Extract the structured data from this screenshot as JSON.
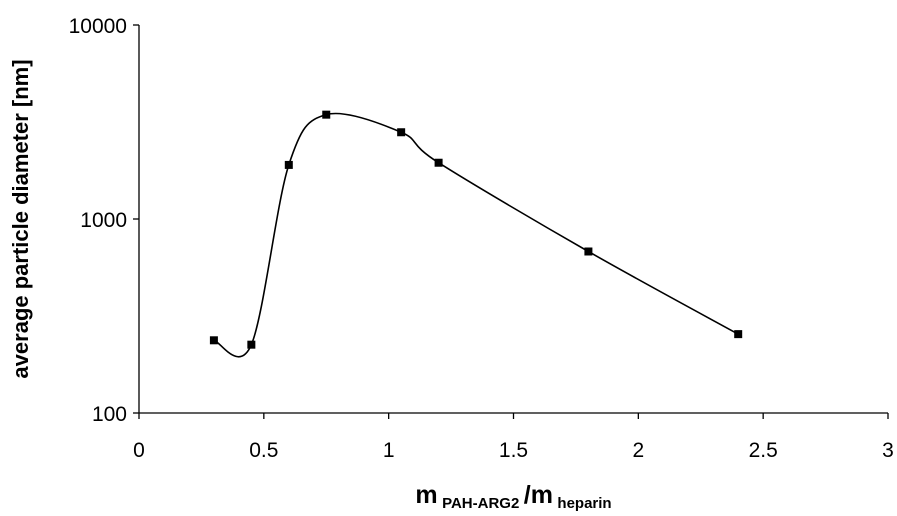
{
  "chart_data": {
    "type": "scatter",
    "title": "",
    "xlabel": {
      "main": "m",
      "sub": "PAH-ARG2",
      "separator": "/m",
      "sub2": "heparin"
    },
    "ylabel": "average particle diameter [nm]",
    "xlim": [
      0,
      3
    ],
    "ylim": [
      100,
      10000
    ],
    "yscale": "log",
    "xticks": [
      "0",
      "0.5",
      "1",
      "1.5",
      "2",
      "2.5",
      "3"
    ],
    "yticks": [
      "100",
      "1000",
      "10000"
    ],
    "grid": false,
    "legend": false,
    "series": [
      {
        "marker": "square",
        "line": "smoothed",
        "color": "#000000",
        "x": [
          0.3,
          0.45,
          0.6,
          0.75,
          1.05,
          1.2,
          1.8,
          2.4
        ],
        "y": [
          237,
          225,
          1900,
          3450,
          2800,
          1950,
          680,
          255
        ]
      }
    ]
  }
}
